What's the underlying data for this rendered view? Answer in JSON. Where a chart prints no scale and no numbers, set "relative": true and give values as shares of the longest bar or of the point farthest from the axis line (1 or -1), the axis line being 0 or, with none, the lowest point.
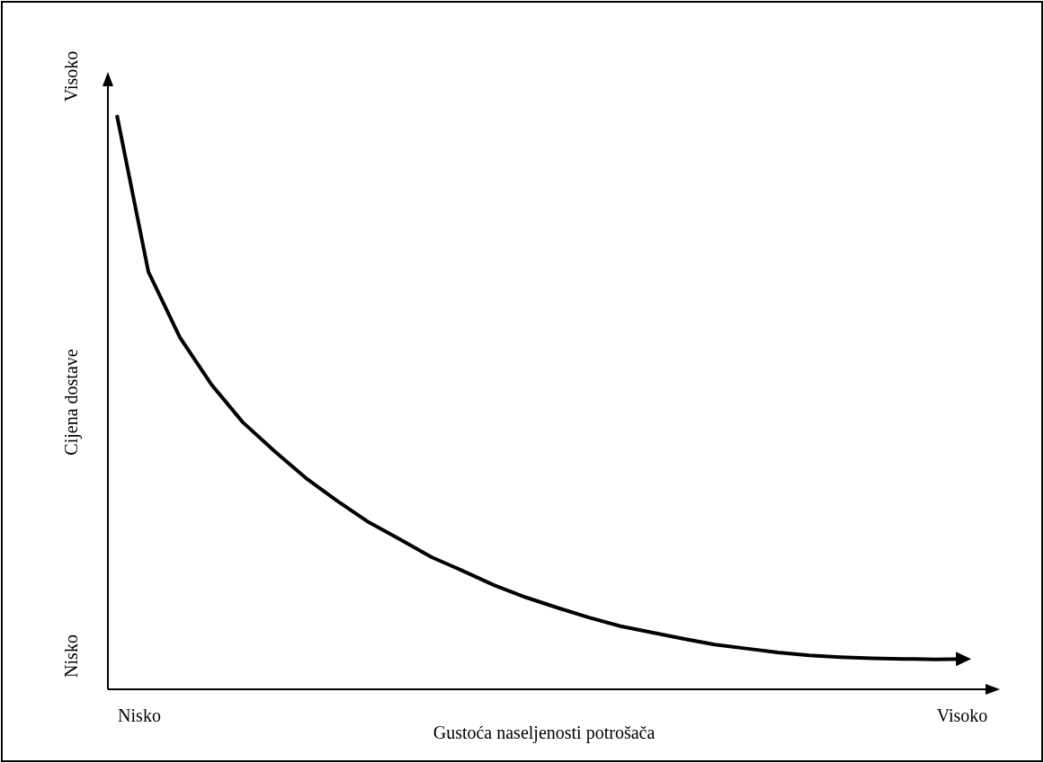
{
  "chart_data": {
    "type": "line",
    "relative": true,
    "xlabel": "Gustoća naseljenosti potrošača",
    "ylabel": "Cijena dostave",
    "annotations": [
      "Visoko",
      "Nisko",
      "Nisko",
      "Visoko"
    ],
    "categories": [
      null,
      null,
      null,
      null,
      null,
      null,
      null,
      null,
      null,
      null,
      null,
      null,
      null,
      null,
      null,
      null,
      null,
      null,
      null,
      null,
      null,
      null,
      null,
      null,
      null,
      null,
      null,
      null
    ],
    "marker": "none",
    "line_style": "solid",
    "series": [
      {
        "color": "#000000",
        "values": [
          1,
          0.727,
          0.613,
          0.531,
          0.465,
          0.415,
          0.368,
          0.328,
          0.291,
          0.261,
          0.23,
          0.206,
          0.181,
          0.16,
          0.142,
          0.125,
          0.11,
          0.099,
          0.088,
          0.078,
          0.071,
          0.064,
          0.059,
          0.056,
          0.054,
          0.053,
          0.052,
          0.053
        ]
      }
    ]
  }
}
